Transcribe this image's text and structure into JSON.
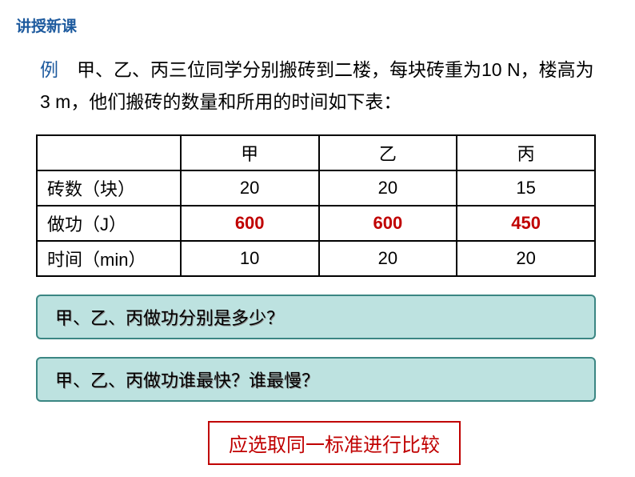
{
  "section_title": "讲授新课",
  "problem": {
    "label": "例",
    "text_part1": "　甲、乙、丙三位同学分别搬砖到二楼，每块砖重为10 N，楼高为 3 m，他们搬砖的数量和所用的时间如下表："
  },
  "table": {
    "columns": [
      "",
      "甲",
      "乙",
      "丙"
    ],
    "rows": [
      {
        "header": "砖数（块）",
        "cells": [
          "20",
          "20",
          "15"
        ],
        "highlight": false
      },
      {
        "header": "做功（J）",
        "cells": [
          "600",
          "600",
          "450"
        ],
        "highlight": true
      },
      {
        "header": "时间（min）",
        "cells": [
          "10",
          "20",
          "20"
        ],
        "highlight": false
      }
    ],
    "border_color": "#000000",
    "highlight_color": "#c00000",
    "font_size": 22
  },
  "questions": {
    "q1": "甲、乙、丙做功分别是多少？",
    "q2": "甲、乙、丙做功谁最快？谁最慢？",
    "box_bg": "#bde2e0",
    "box_border": "#3b8683"
  },
  "conclusion": {
    "text": "应选取同一标准进行比较",
    "color": "#c00000"
  }
}
